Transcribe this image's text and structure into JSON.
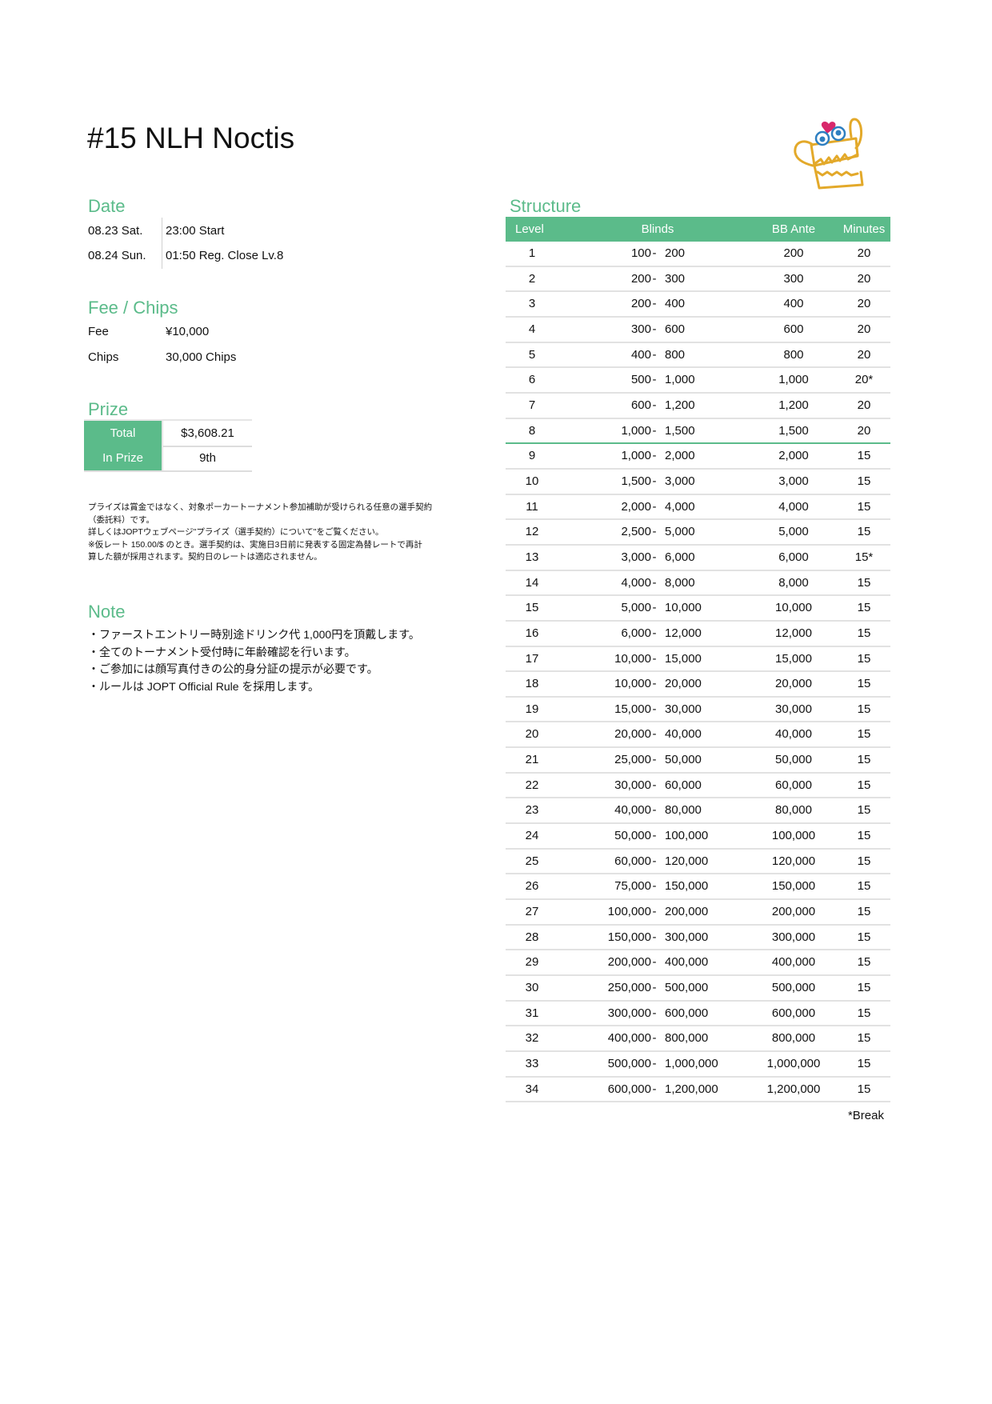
{
  "title": "#15 NLH Noctis",
  "accent_color": "#5bbb8a",
  "date": {
    "heading": "Date",
    "rows": [
      {
        "day": "08.23 Sat.",
        "info": "23:00 Start"
      },
      {
        "day": "08.24 Sun.",
        "info": "01:50 Reg. Close Lv.8"
      }
    ]
  },
  "fee_chips": {
    "heading": "Fee / Chips",
    "fee_label": "Fee",
    "fee_value": "¥10,000",
    "chips_label": "Chips",
    "chips_value": "30,000 Chips"
  },
  "prize": {
    "heading": "Prize",
    "total_label": "Total",
    "total_value": "$3,608.21",
    "in_prize_label": "In Prize",
    "in_prize_value": "9th",
    "disclaimer": [
      "プライズは賞金ではなく、対象ポーカートーナメント参加補助が受けられる任意の選手契約",
      "（委託料）です。",
      "詳しくはJOPTウェブページ\"プライズ（選手契約）について\"をご覧ください。",
      "※仮レート 150.00/$ のとき。選手契約は、実施日3日前に発表する固定為替レートで再計",
      "算した額が採用されます。契約日のレートは適応されません。"
    ]
  },
  "note": {
    "heading": "Note",
    "items": [
      "・ファーストエントリー時別途ドリンク代 1,000円を頂戴します。",
      "・全てのトーナメント受付時に年齢確認を行います。",
      "・ご参加には顔写真付きの公的身分証の提示が必要です。",
      "・ルールは JOPT Official Rule を採用します。"
    ]
  },
  "structure": {
    "heading": "Structure",
    "columns": {
      "level": "Level",
      "blinds": "Blinds",
      "ante": "BB Ante",
      "minutes": "Minutes"
    },
    "reg_close_level": 8,
    "rows": [
      [
        "1",
        "100",
        "200",
        "200",
        "20"
      ],
      [
        "2",
        "200",
        "300",
        "300",
        "20"
      ],
      [
        "3",
        "200",
        "400",
        "400",
        "20"
      ],
      [
        "4",
        "300",
        "600",
        "600",
        "20"
      ],
      [
        "5",
        "400",
        "800",
        "800",
        "20"
      ],
      [
        "6",
        "500",
        "1,000",
        "1,000",
        "20*"
      ],
      [
        "7",
        "600",
        "1,200",
        "1,200",
        "20"
      ],
      [
        "8",
        "1,000",
        "1,500",
        "1,500",
        "20"
      ],
      [
        "9",
        "1,000",
        "2,000",
        "2,000",
        "15"
      ],
      [
        "10",
        "1,500",
        "3,000",
        "3,000",
        "15"
      ],
      [
        "11",
        "2,000",
        "4,000",
        "4,000",
        "15"
      ],
      [
        "12",
        "2,500",
        "5,000",
        "5,000",
        "15"
      ],
      [
        "13",
        "3,000",
        "6,000",
        "6,000",
        "15*"
      ],
      [
        "14",
        "4,000",
        "8,000",
        "8,000",
        "15"
      ],
      [
        "15",
        "5,000",
        "10,000",
        "10,000",
        "15"
      ],
      [
        "16",
        "6,000",
        "12,000",
        "12,000",
        "15"
      ],
      [
        "17",
        "10,000",
        "15,000",
        "15,000",
        "15"
      ],
      [
        "18",
        "10,000",
        "20,000",
        "20,000",
        "15"
      ],
      [
        "19",
        "15,000",
        "30,000",
        "30,000",
        "15"
      ],
      [
        "20",
        "20,000",
        "40,000",
        "40,000",
        "15"
      ],
      [
        "21",
        "25,000",
        "50,000",
        "50,000",
        "15"
      ],
      [
        "22",
        "30,000",
        "60,000",
        "60,000",
        "15"
      ],
      [
        "23",
        "40,000",
        "80,000",
        "80,000",
        "15"
      ],
      [
        "24",
        "50,000",
        "100,000",
        "100,000",
        "15"
      ],
      [
        "25",
        "60,000",
        "120,000",
        "120,000",
        "15"
      ],
      [
        "26",
        "75,000",
        "150,000",
        "150,000",
        "15"
      ],
      [
        "27",
        "100,000",
        "200,000",
        "200,000",
        "15"
      ],
      [
        "28",
        "150,000",
        "300,000",
        "300,000",
        "15"
      ],
      [
        "29",
        "200,000",
        "400,000",
        "400,000",
        "15"
      ],
      [
        "30",
        "250,000",
        "500,000",
        "500,000",
        "15"
      ],
      [
        "31",
        "300,000",
        "600,000",
        "600,000",
        "15"
      ],
      [
        "32",
        "400,000",
        "800,000",
        "800,000",
        "15"
      ],
      [
        "33",
        "500,000",
        "1,000,000",
        "1,000,000",
        "15"
      ],
      [
        "34",
        "600,000",
        "1,200,000",
        "1,200,000",
        "15"
      ]
    ],
    "separator": "-",
    "footnote": "*Break"
  },
  "logo": {
    "icon": "monster-mascot-logo"
  }
}
